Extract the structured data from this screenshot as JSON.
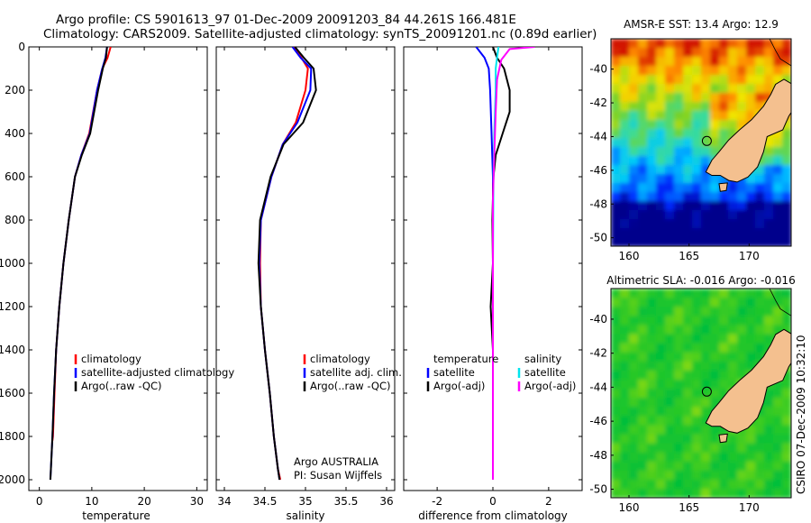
{
  "figure": {
    "title_line1": "Argo profile: CS 5901613_97 01-Dec-2009 20091203_84 44.261S 166.481E",
    "title_line2": "Climatology: CARS2009. Satellite-adjusted climatology: synTS_20091201.nc (0.89d earlier)",
    "credit": "CSIRO 07-Dec-2009 10:32:10",
    "argo_note": [
      "Argo AUSTRALIA",
      "PI: Susan Wijffels"
    ]
  },
  "colors": {
    "climatology": "#ff0000",
    "satellite": "#0000ff",
    "argo": "#000000",
    "sal_satellite": "#00e5ee",
    "sal_argo": "#ff00ff",
    "land": "#f4c08f"
  },
  "chart_data": [
    {
      "type": "line",
      "xlabel": "temperature",
      "ylabel": "",
      "xlim": [
        -2,
        32
      ],
      "ylim": [
        2050,
        0
      ],
      "xticks": [
        0,
        10,
        20,
        30
      ],
      "yticks": [
        0,
        200,
        400,
        600,
        800,
        1000,
        1200,
        1400,
        1600,
        1800,
        2000
      ],
      "legend": [
        "climatology",
        "satellite-adjusted climatology",
        "Argo(..raw -QC)"
      ],
      "series": [
        {
          "name": "climatology",
          "color": "#ff0000",
          "x": [
            13.6,
            13.0,
            12.0,
            11.0,
            9.5,
            8.0,
            6.8,
            5.6,
            4.6,
            3.8,
            3.2,
            2.9,
            2.6,
            2.5
          ],
          "y": [
            0,
            50,
            100,
            200,
            400,
            500,
            600,
            800,
            1000,
            1200,
            1400,
            1600,
            1800,
            1820
          ]
        },
        {
          "name": "satellite-adjusted climatology",
          "color": "#0000ff",
          "x": [
            12.9,
            12.6,
            12.0,
            11.0,
            9.6,
            8.0,
            6.8,
            5.6,
            4.6,
            3.8,
            3.2,
            2.8,
            2.5,
            2.2,
            2.1
          ],
          "y": [
            0,
            50,
            100,
            200,
            400,
            500,
            600,
            800,
            1000,
            1200,
            1400,
            1600,
            1800,
            1950,
            2000
          ]
        },
        {
          "name": "Argo(..raw -QC)",
          "color": "#000000",
          "x": [
            12.9,
            12.7,
            12.1,
            11.2,
            9.7,
            8.1,
            6.8,
            5.6,
            4.6,
            3.8,
            3.2,
            2.8,
            2.5,
            2.2,
            2.1
          ],
          "y": [
            0,
            50,
            100,
            200,
            400,
            500,
            600,
            800,
            1000,
            1200,
            1400,
            1600,
            1800,
            1950,
            2000
          ]
        }
      ]
    },
    {
      "type": "line",
      "xlabel": "salinity",
      "ylabel": "",
      "xlim": [
        33.9,
        36.1
      ],
      "ylim": [
        2050,
        0
      ],
      "xticks": [
        34,
        34.5,
        35,
        35.5,
        36
      ],
      "yticks": [
        0,
        200,
        400,
        600,
        800,
        1000,
        1200,
        1400,
        1600,
        1800,
        2000
      ],
      "legend": [
        "climatology",
        "satellite adj. clim.",
        "Argo(..raw -QC)"
      ],
      "series": [
        {
          "name": "climatology",
          "color": "#ff0000",
          "x": [
            34.85,
            34.95,
            35.03,
            35.0,
            34.88,
            34.72,
            34.58,
            34.45,
            34.44,
            34.45,
            34.5,
            34.56,
            34.61,
            34.66,
            34.69
          ],
          "y": [
            0,
            50,
            100,
            200,
            350,
            450,
            600,
            800,
            1000,
            1200,
            1400,
            1600,
            1800,
            1950,
            2000
          ]
        },
        {
          "name": "satellite adj. clim.",
          "color": "#0000ff",
          "x": [
            34.84,
            34.94,
            35.07,
            35.06,
            34.9,
            34.72,
            34.58,
            34.45,
            34.43,
            34.45,
            34.5,
            34.56,
            34.61,
            34.66,
            34.68
          ],
          "y": [
            0,
            50,
            100,
            200,
            350,
            450,
            600,
            800,
            1000,
            1200,
            1400,
            1600,
            1800,
            1950,
            2000
          ]
        },
        {
          "name": "Argo(..raw -QC)",
          "color": "#000000",
          "x": [
            34.87,
            34.98,
            35.1,
            35.13,
            34.97,
            34.73,
            34.57,
            34.44,
            34.42,
            34.45,
            34.5,
            34.56,
            34.61,
            34.66,
            34.68
          ],
          "y": [
            0,
            50,
            100,
            200,
            350,
            450,
            600,
            800,
            1000,
            1200,
            1400,
            1600,
            1800,
            1950,
            2000
          ]
        }
      ]
    },
    {
      "type": "line",
      "xlabel": "difference from climatology",
      "ylabel": "",
      "xlim": [
        -3.2,
        3.2
      ],
      "ylim": [
        2050,
        0
      ],
      "xticks": [
        -2,
        0,
        2
      ],
      "yticks": [
        0,
        200,
        400,
        600,
        800,
        1000,
        1200,
        1400,
        1600,
        1800,
        2000
      ],
      "legend_headers": [
        "temperature",
        "salinity"
      ],
      "legend": [
        "satellite",
        "Argo(-adj)",
        "satellite",
        "Argo(-adj)"
      ],
      "series": [
        {
          "name": "satellite",
          "group": "temperature",
          "color": "#0000ff",
          "x": [
            -0.6,
            -0.3,
            -0.15,
            -0.1,
            -0.05,
            0.0,
            0.0,
            0.0,
            0.0
          ],
          "y": [
            0,
            50,
            100,
            200,
            400,
            600,
            1000,
            1500,
            2000
          ]
        },
        {
          "name": "Argo(-adj)",
          "group": "temperature",
          "color": "#000000",
          "x": [
            0.0,
            0.15,
            0.4,
            0.6,
            0.6,
            0.35,
            0.1,
            0.02,
            -0.02,
            0.0,
            -0.08,
            0.0,
            0.0
          ],
          "y": [
            0,
            50,
            100,
            200,
            300,
            400,
            500,
            600,
            800,
            1000,
            1200,
            1400,
            2000
          ]
        },
        {
          "name": "satellite",
          "group": "salinity",
          "color": "#00e5ee",
          "x": [
            0.2,
            0.15,
            0.1,
            0.1,
            0.05,
            0.02,
            0.0,
            0.0,
            0.0
          ],
          "y": [
            0,
            50,
            100,
            200,
            400,
            600,
            1000,
            1500,
            2000
          ]
        },
        {
          "name": "Argo(-adj)",
          "group": "salinity",
          "color": "#ff00ff",
          "x": [
            1.5,
            0.6,
            0.3,
            0.15,
            0.1,
            0.05,
            0.0,
            0.0,
            0.0,
            0.0
          ],
          "y": [
            0,
            10,
            60,
            150,
            300,
            500,
            700,
            1000,
            1500,
            2000
          ]
        }
      ]
    }
  ],
  "maps": [
    {
      "title": "AMSR-E SST: 13.4 Argo: 12.9",
      "xticks": [
        160,
        165,
        170
      ],
      "yticks": [
        -40,
        -42,
        -44,
        -46,
        -48,
        -50
      ],
      "xlim": [
        158.5,
        173.5
      ],
      "ylim": [
        -50.5,
        -38.2
      ],
      "marker": {
        "lon": 166.48,
        "lat": -44.26
      }
    },
    {
      "title": "Altimetric SLA: -0.016 Argo: -0.016",
      "xticks": [
        160,
        165,
        170
      ],
      "yticks": [
        -40,
        -42,
        -44,
        -46,
        -48,
        -50
      ],
      "xlim": [
        158.5,
        173.5
      ],
      "ylim": [
        -50.5,
        -38.2
      ],
      "marker": {
        "lon": 166.48,
        "lat": -44.26
      }
    }
  ]
}
